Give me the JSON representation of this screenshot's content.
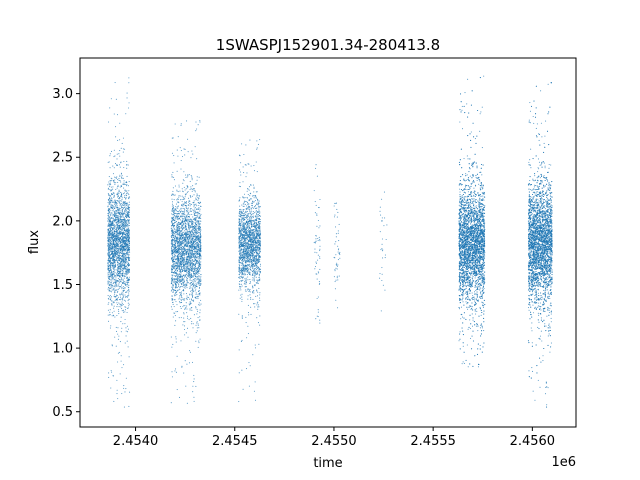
{
  "chart_data": {
    "type": "scatter",
    "title": "1SWASPJ152901.34-280413.8",
    "xlabel": "time",
    "ylabel": "flux",
    "x_offset_label": "1e6",
    "xlim": [
      2.45372,
      2.45622
    ],
    "ylim": [
      0.38,
      3.28
    ],
    "x_ticks": [
      2.454,
      2.4545,
      2.455,
      2.4555,
      2.456
    ],
    "x_tick_labels": [
      "2.4540",
      "2.4545",
      "2.4550",
      "2.4555",
      "2.4560"
    ],
    "y_ticks": [
      0.5,
      1.0,
      1.5,
      2.0,
      2.5,
      3.0
    ],
    "y_tick_labels": [
      "0.5",
      "1.0",
      "1.5",
      "2.0",
      "2.5",
      "3.0"
    ],
    "grid": false,
    "point_color": "#1f77b4",
    "clusters": [
      {
        "x_range": [
          2.45386,
          2.45397
        ],
        "y_center": 1.82,
        "y_spread": 0.22,
        "y_min": 0.52,
        "y_max": 3.13,
        "density": 2400
      },
      {
        "x_range": [
          2.45418,
          2.45433
        ],
        "y_center": 1.78,
        "y_spread": 0.2,
        "y_min": 0.56,
        "y_max": 2.8,
        "density": 2600
      },
      {
        "x_range": [
          2.45452,
          2.45463
        ],
        "y_center": 1.82,
        "y_spread": 0.16,
        "y_min": 0.57,
        "y_max": 2.65,
        "density": 1800
      },
      {
        "x_range": [
          2.4549,
          2.45493
        ],
        "y_center": 1.75,
        "y_spread": 0.25,
        "y_min": 0.95,
        "y_max": 2.47,
        "density": 60
      },
      {
        "x_range": [
          2.455,
          2.45503
        ],
        "y_center": 1.75,
        "y_spread": 0.2,
        "y_min": 0.95,
        "y_max": 2.15,
        "density": 50
      },
      {
        "x_range": [
          2.45523,
          2.45527
        ],
        "y_center": 1.85,
        "y_spread": 0.2,
        "y_min": 1.2,
        "y_max": 2.35,
        "density": 30
      },
      {
        "x_range": [
          2.45563,
          2.45576
        ],
        "y_center": 1.82,
        "y_spread": 0.22,
        "y_min": 0.85,
        "y_max": 3.15,
        "density": 4200
      },
      {
        "x_range": [
          2.45598,
          2.4561
        ],
        "y_center": 1.82,
        "y_spread": 0.22,
        "y_min": 0.53,
        "y_max": 3.1,
        "density": 4000
      }
    ]
  }
}
